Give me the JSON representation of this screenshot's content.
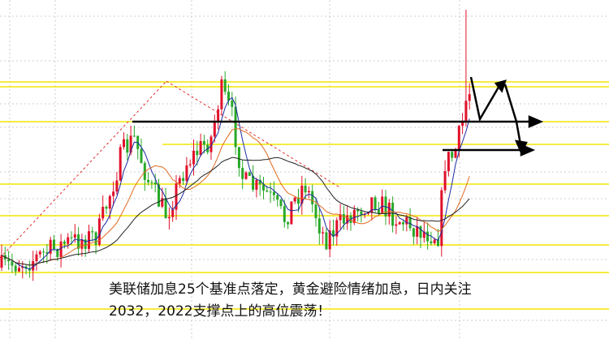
{
  "annotation": {
    "lines": [
      "美联储加息25个基准点落定，黄金避险情绪加息，日内关注",
      "2032，2022支撑点上的高位震荡！"
    ]
  }
}
